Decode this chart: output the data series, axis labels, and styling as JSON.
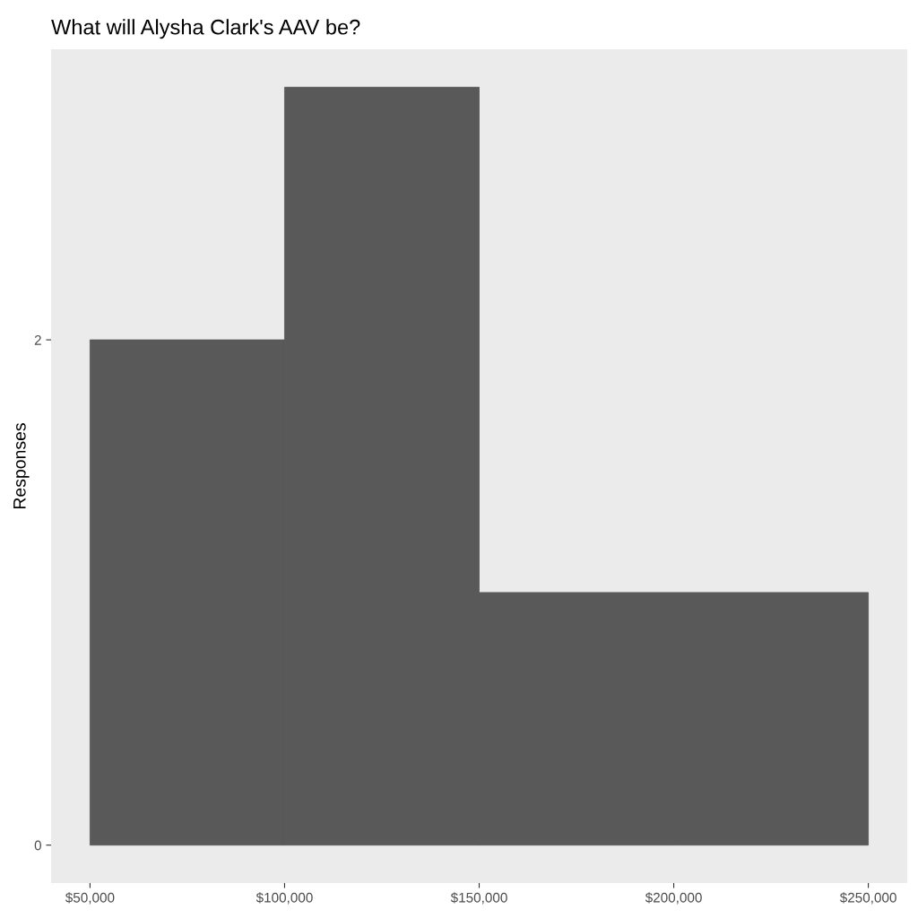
{
  "chart_data": {
    "type": "histogram",
    "title": "What will Alysha Clark's AAV be?",
    "ylabel": "Responses",
    "bins": [
      50000,
      100000,
      150000,
      200000,
      250000
    ],
    "values": [
      2,
      3,
      1,
      1
    ],
    "color": "#595959",
    "xlim": [
      40000,
      260000
    ],
    "ylim": [
      -0.15,
      3.15
    ],
    "xticks": [
      {
        "value": 50000,
        "label": "$50,000"
      },
      {
        "value": 100000,
        "label": "$100,000"
      },
      {
        "value": 150000,
        "label": "$150,000"
      },
      {
        "value": 200000,
        "label": "$200,000"
      },
      {
        "value": 250000,
        "label": "$250,000"
      }
    ],
    "yticks": [
      0,
      2
    ],
    "grid": false
  }
}
